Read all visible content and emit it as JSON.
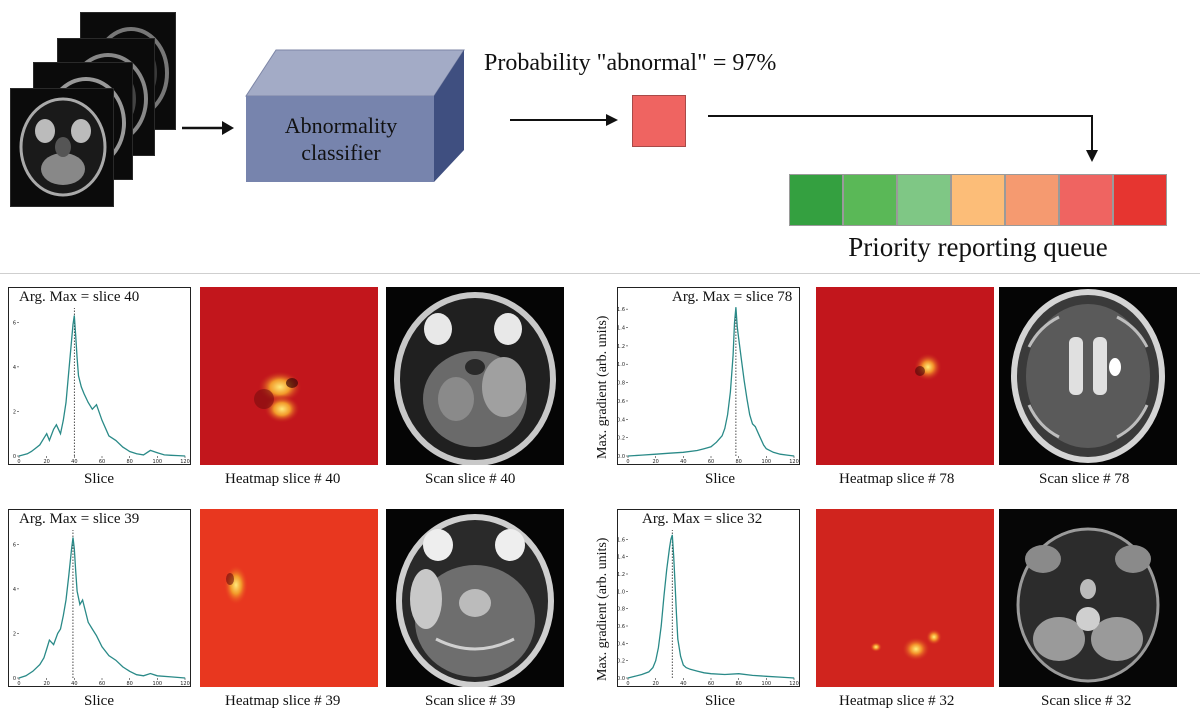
{
  "pipeline": {
    "classifier_label_line1": "Abnormality",
    "classifier_label_line2": "classifier",
    "probability_text": "Probability \"abnormal\" = 97%",
    "probability_value": 0.97,
    "probability_color": "#ef6461",
    "queue_label": "Priority reporting queue",
    "queue_colors": [
      "#34a040",
      "#5ab857",
      "#7fc785",
      "#fcbd78",
      "#f59a70",
      "#ef6461",
      "#e63530"
    ]
  },
  "panels": [
    {
      "argmax_text": "Arg. Max = slice 40",
      "x_axis_label": "Slice",
      "y_axis_label": "",
      "heatmap_caption": "Heatmap slice # 40",
      "scan_caption": "Scan slice # 40",
      "chart_data": {
        "type": "line",
        "xlabel": "Slice",
        "ylabel": "",
        "xlim": [
          0,
          120
        ],
        "ylim": [
          0,
          7
        ],
        "x_ticks": [
          "0",
          "20",
          "40",
          "60",
          "80",
          "100",
          "120"
        ],
        "y_ticks": [
          "0",
          "2",
          "4",
          "6"
        ],
        "argmax": 40,
        "x": [
          0,
          3,
          6,
          9,
          12,
          15,
          18,
          20,
          22,
          25,
          27,
          30,
          32,
          34,
          36,
          38,
          39,
          40,
          41,
          42,
          43,
          45,
          47,
          50,
          53,
          56,
          60,
          65,
          70,
          75,
          80,
          85,
          90,
          95,
          100,
          105,
          110,
          115,
          120
        ],
        "y": [
          0,
          0.05,
          0.1,
          0.2,
          0.35,
          0.5,
          0.8,
          1.0,
          0.7,
          1.2,
          1.4,
          1.0,
          1.6,
          2.4,
          3.8,
          5.2,
          5.9,
          6.3,
          5.4,
          4.4,
          3.6,
          3.1,
          2.8,
          2.4,
          2.1,
          2.3,
          1.6,
          0.9,
          0.7,
          0.4,
          0.2,
          0.1,
          0.05,
          0.25,
          0.15,
          0.05,
          0.03,
          0.02,
          0
        ]
      }
    },
    {
      "argmax_text": "Arg. Max = slice 78",
      "x_axis_label": "Slice",
      "y_axis_label": "Max. gradient (arb. units)",
      "heatmap_caption": "Heatmap slice # 78",
      "scan_caption": "Scan slice # 78",
      "chart_data": {
        "type": "line",
        "xlabel": "Slice",
        "ylabel": "Max. gradient (arb. units)",
        "xlim": [
          0,
          120
        ],
        "ylim": [
          0,
          1.7
        ],
        "x_ticks": [
          "0",
          "20",
          "40",
          "60",
          "80",
          "100",
          "120"
        ],
        "y_ticks": [
          "0.0",
          "0.2",
          "0.4",
          "0.6",
          "0.8",
          "1.0",
          "1.2",
          "1.4",
          "1.6"
        ],
        "argmax": 78,
        "x": [
          0,
          10,
          20,
          30,
          40,
          50,
          55,
          60,
          64,
          68,
          70,
          72,
          74,
          76,
          77,
          78,
          79,
          80,
          82,
          84,
          86,
          88,
          90,
          92,
          95,
          98,
          100,
          105,
          110,
          115,
          120
        ],
        "y": [
          0,
          0.01,
          0.02,
          0.03,
          0.04,
          0.06,
          0.08,
          0.1,
          0.15,
          0.22,
          0.3,
          0.45,
          0.7,
          1.1,
          1.45,
          1.62,
          1.4,
          1.28,
          1.05,
          0.82,
          0.62,
          0.45,
          0.35,
          0.32,
          0.22,
          0.12,
          0.08,
          0.04,
          0.02,
          0.01,
          0
        ]
      }
    },
    {
      "argmax_text": "Arg. Max = slice 39",
      "x_axis_label": "Slice",
      "y_axis_label": "",
      "heatmap_caption": "Heatmap slice # 39",
      "scan_caption": "Scan slice # 39",
      "chart_data": {
        "type": "line",
        "xlabel": "Slice",
        "ylabel": "",
        "xlim": [
          0,
          120
        ],
        "ylim": [
          0,
          7
        ],
        "x_ticks": [
          "0",
          "20",
          "40",
          "60",
          "80",
          "100",
          "120"
        ],
        "y_ticks": [
          "0",
          "2",
          "4",
          "6"
        ],
        "argmax": 39,
        "x": [
          0,
          5,
          10,
          15,
          18,
          20,
          22,
          25,
          28,
          30,
          32,
          34,
          36,
          38,
          39,
          40,
          41,
          42,
          44,
          46,
          48,
          50,
          53,
          56,
          60,
          65,
          70,
          75,
          80,
          85,
          90,
          95,
          100,
          110,
          120
        ],
        "y": [
          0,
          0.1,
          0.3,
          0.6,
          0.9,
          1.3,
          1.7,
          1.5,
          2.0,
          2.2,
          2.8,
          3.5,
          4.6,
          5.8,
          6.3,
          5.8,
          4.8,
          3.9,
          3.3,
          3.5,
          3.0,
          2.5,
          2.2,
          1.9,
          1.4,
          1.0,
          0.8,
          0.5,
          0.3,
          0.15,
          0.1,
          0.2,
          0.1,
          0.05,
          0
        ]
      }
    },
    {
      "argmax_text": "Arg. Max = slice 32",
      "x_axis_label": "Slice",
      "y_axis_label": "Max. gradient (arb. units)",
      "heatmap_caption": "Heatmap slice # 32",
      "scan_caption": "Scan slice # 32",
      "chart_data": {
        "type": "line",
        "xlabel": "Slice",
        "ylabel": "Max. gradient (arb. units)",
        "xlim": [
          0,
          120
        ],
        "ylim": [
          0,
          1.8
        ],
        "x_ticks": [
          "0",
          "20",
          "40",
          "60",
          "80",
          "100",
          "120"
        ],
        "y_ticks": [
          "0.0",
          "0.2",
          "0.4",
          "0.6",
          "0.8",
          "1.0",
          "1.2",
          "1.4",
          "1.6"
        ],
        "argmax": 32,
        "x": [
          0,
          5,
          10,
          15,
          18,
          20,
          22,
          24,
          26,
          28,
          30,
          31,
          32,
          33,
          34,
          35,
          36,
          38,
          40,
          42,
          45,
          50,
          55,
          60,
          70,
          80,
          90,
          100,
          110,
          120
        ],
        "y": [
          0,
          0.02,
          0.04,
          0.07,
          0.12,
          0.2,
          0.35,
          0.6,
          0.95,
          1.25,
          1.5,
          1.6,
          1.65,
          1.4,
          1.1,
          0.75,
          0.45,
          0.25,
          0.15,
          0.12,
          0.1,
          0.08,
          0.06,
          0.05,
          0.04,
          0.05,
          0.03,
          0.02,
          0.01,
          0
        ]
      }
    }
  ]
}
